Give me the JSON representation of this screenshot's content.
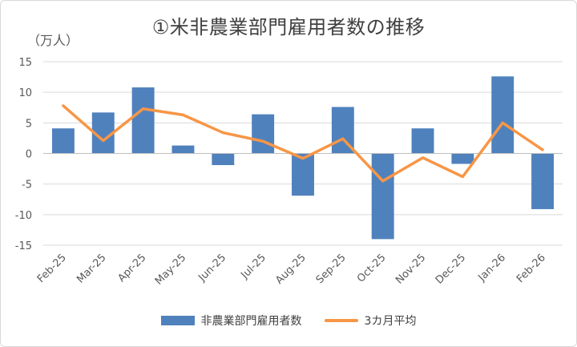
{
  "chart_data": {
    "type": "bar",
    "title": "①米非農業部門雇用者数の推移",
    "unit_label": "（万人）",
    "categories": [
      "Feb-25",
      "Mar-25",
      "Apr-25",
      "May-25",
      "Jun-25",
      "Jul-25",
      "Aug-25",
      "Sep-25",
      "Oct-25",
      "Nov-25",
      "Dec-25",
      "Jan-26",
      "Feb-26"
    ],
    "series": [
      {
        "name": "非農業部門雇用者数",
        "type": "bar",
        "color": "#4f81bd",
        "values": [
          4.1,
          6.7,
          10.8,
          1.3,
          -1.9,
          6.4,
          -6.9,
          7.6,
          -14.0,
          4.1,
          -1.7,
          12.6,
          -9.1
        ]
      },
      {
        "name": "3カ月平均",
        "type": "line",
        "color": "#f79646",
        "values": [
          7.8,
          2.1,
          7.3,
          6.3,
          3.4,
          2.0,
          -0.8,
          2.4,
          -4.5,
          -0.7,
          -3.8,
          5.0,
          0.6
        ]
      }
    ],
    "ylim": [
      -15,
      15
    ],
    "yticks": [
      15,
      10,
      5,
      0,
      -5,
      -10,
      -15
    ],
    "grid": true,
    "legend_position": "bottom"
  }
}
